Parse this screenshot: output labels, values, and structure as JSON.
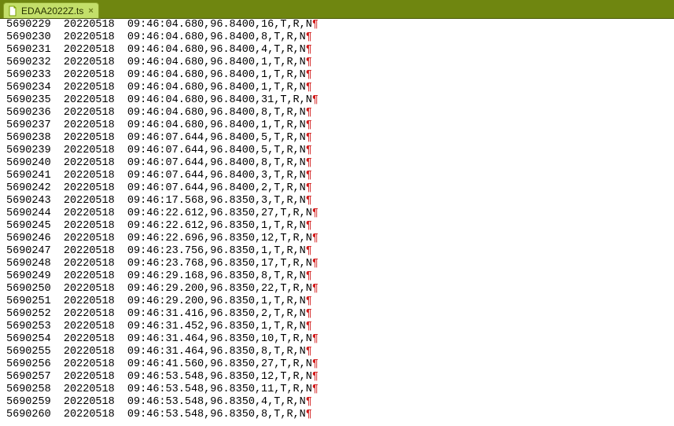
{
  "tab": {
    "filename": "EDAA2022Z.ts",
    "close_glyph": "×"
  },
  "editor": {
    "pilcrow": "¶",
    "rows": [
      {
        "lineno": "5690229",
        "date": "20220518",
        "rest": "09:46:04.680,96.8400,16,T,R,N"
      },
      {
        "lineno": "5690230",
        "date": "20220518",
        "rest": "09:46:04.680,96.8400,8,T,R,N"
      },
      {
        "lineno": "5690231",
        "date": "20220518",
        "rest": "09:46:04.680,96.8400,4,T,R,N"
      },
      {
        "lineno": "5690232",
        "date": "20220518",
        "rest": "09:46:04.680,96.8400,1,T,R,N"
      },
      {
        "lineno": "5690233",
        "date": "20220518",
        "rest": "09:46:04.680,96.8400,1,T,R,N"
      },
      {
        "lineno": "5690234",
        "date": "20220518",
        "rest": "09:46:04.680,96.8400,1,T,R,N"
      },
      {
        "lineno": "5690235",
        "date": "20220518",
        "rest": "09:46:04.680,96.8400,31,T,R,N"
      },
      {
        "lineno": "5690236",
        "date": "20220518",
        "rest": "09:46:04.680,96.8400,8,T,R,N"
      },
      {
        "lineno": "5690237",
        "date": "20220518",
        "rest": "09:46:04.680,96.8400,1,T,R,N"
      },
      {
        "lineno": "5690238",
        "date": "20220518",
        "rest": "09:46:07.644,96.8400,5,T,R,N"
      },
      {
        "lineno": "5690239",
        "date": "20220518",
        "rest": "09:46:07.644,96.8400,5,T,R,N"
      },
      {
        "lineno": "5690240",
        "date": "20220518",
        "rest": "09:46:07.644,96.8400,8,T,R,N"
      },
      {
        "lineno": "5690241",
        "date": "20220518",
        "rest": "09:46:07.644,96.8400,3,T,R,N"
      },
      {
        "lineno": "5690242",
        "date": "20220518",
        "rest": "09:46:07.644,96.8400,2,T,R,N"
      },
      {
        "lineno": "5690243",
        "date": "20220518",
        "rest": "09:46:17.568,96.8350,3,T,R,N"
      },
      {
        "lineno": "5690244",
        "date": "20220518",
        "rest": "09:46:22.612,96.8350,27,T,R,N"
      },
      {
        "lineno": "5690245",
        "date": "20220518",
        "rest": "09:46:22.612,96.8350,1,T,R,N"
      },
      {
        "lineno": "5690246",
        "date": "20220518",
        "rest": "09:46:22.696,96.8350,12,T,R,N"
      },
      {
        "lineno": "5690247",
        "date": "20220518",
        "rest": "09:46:23.756,96.8350,1,T,R,N"
      },
      {
        "lineno": "5690248",
        "date": "20220518",
        "rest": "09:46:23.768,96.8350,17,T,R,N"
      },
      {
        "lineno": "5690249",
        "date": "20220518",
        "rest": "09:46:29.168,96.8350,8,T,R,N"
      },
      {
        "lineno": "5690250",
        "date": "20220518",
        "rest": "09:46:29.200,96.8350,22,T,R,N"
      },
      {
        "lineno": "5690251",
        "date": "20220518",
        "rest": "09:46:29.200,96.8350,1,T,R,N"
      },
      {
        "lineno": "5690252",
        "date": "20220518",
        "rest": "09:46:31.416,96.8350,2,T,R,N"
      },
      {
        "lineno": "5690253",
        "date": "20220518",
        "rest": "09:46:31.452,96.8350,1,T,R,N"
      },
      {
        "lineno": "5690254",
        "date": "20220518",
        "rest": "09:46:31.464,96.8350,10,T,R,N"
      },
      {
        "lineno": "5690255",
        "date": "20220518",
        "rest": "09:46:31.464,96.8350,8,T,R,N"
      },
      {
        "lineno": "5690256",
        "date": "20220518",
        "rest": "09:46:41.560,96.8350,27,T,R,N"
      },
      {
        "lineno": "5690257",
        "date": "20220518",
        "rest": "09:46:53.548,96.8350,12,T,R,N"
      },
      {
        "lineno": "5690258",
        "date": "20220518",
        "rest": "09:46:53.548,96.8350,11,T,R,N"
      },
      {
        "lineno": "5690259",
        "date": "20220518",
        "rest": "09:46:53.548,96.8350,4,T,R,N"
      },
      {
        "lineno": "5690260",
        "date": "20220518",
        "rest": "09:46:53.548,96.8350,8,T,R,N"
      }
    ]
  }
}
